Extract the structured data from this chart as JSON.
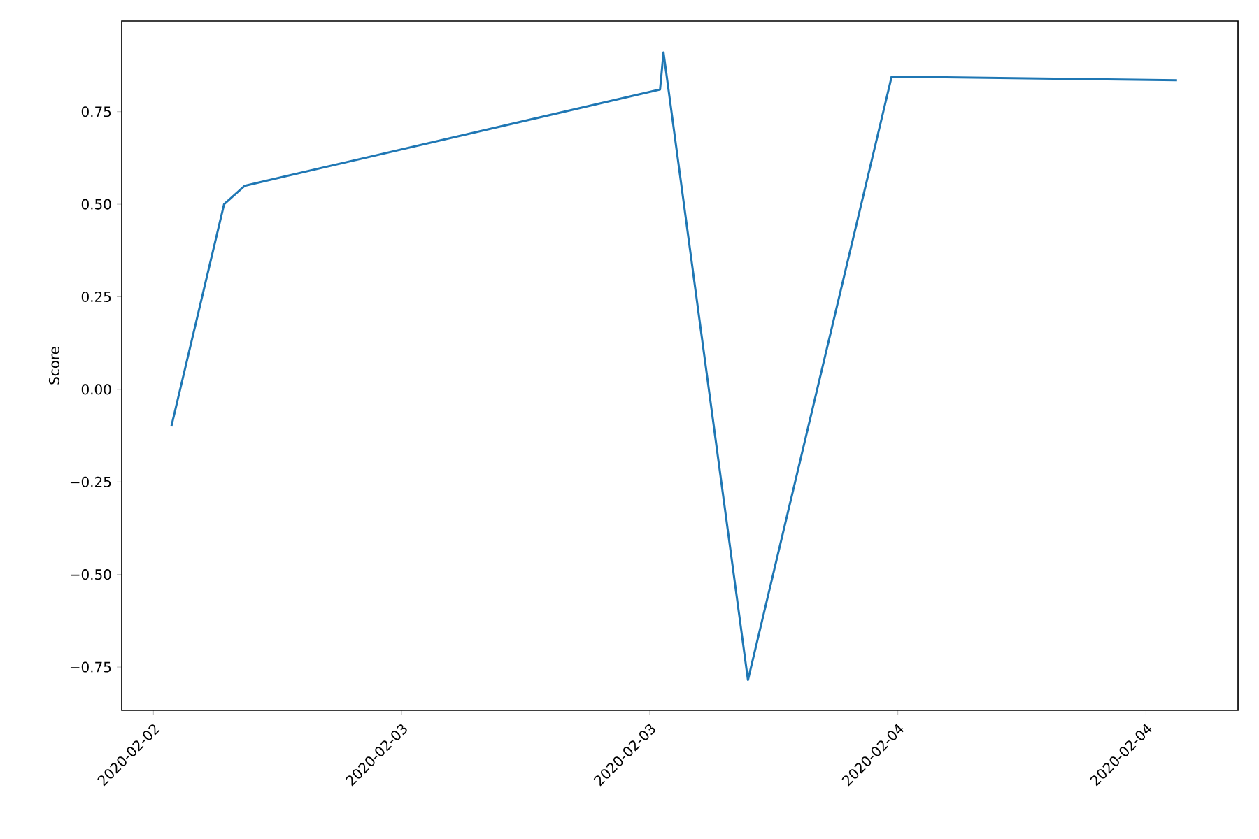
{
  "chart_data": {
    "type": "line",
    "ylabel": "Score",
    "color": "#1f77b4",
    "x": [
      "2020-02-02T12:52",
      "2020-02-02T15:25",
      "2020-02-02T16:25",
      "2020-02-03T12:30",
      "2020-02-03T12:40",
      "2020-02-03T16:45",
      "2020-02-03T23:42",
      "2020-02-04T13:30"
    ],
    "values": [
      -0.1,
      0.5,
      0.55,
      0.81,
      0.91,
      -0.785,
      0.845,
      0.835
    ],
    "xlim": [
      "2020-02-02T10:28",
      "2020-02-04T16:27"
    ],
    "ylim": [
      -0.867,
      0.995
    ],
    "xticks": [
      {
        "value": "2020-02-02T12:00",
        "label": "2020-02-02"
      },
      {
        "value": "2020-02-03T00:00",
        "label": "2020-02-03"
      },
      {
        "value": "2020-02-03T12:00",
        "label": "2020-02-03"
      },
      {
        "value": "2020-02-04T00:00",
        "label": "2020-02-04"
      },
      {
        "value": "2020-02-04T12:00",
        "label": "2020-02-04"
      }
    ],
    "yticks": [
      {
        "value": -0.75,
        "label": "−0.75"
      },
      {
        "value": -0.5,
        "label": "−0.50"
      },
      {
        "value": -0.25,
        "label": "−0.25"
      },
      {
        "value": 0,
        "label": "0.00"
      },
      {
        "value": 0.25,
        "label": "0.25"
      },
      {
        "value": 0.5,
        "label": "0.50"
      },
      {
        "value": 0.75,
        "label": "0.75"
      }
    ]
  }
}
